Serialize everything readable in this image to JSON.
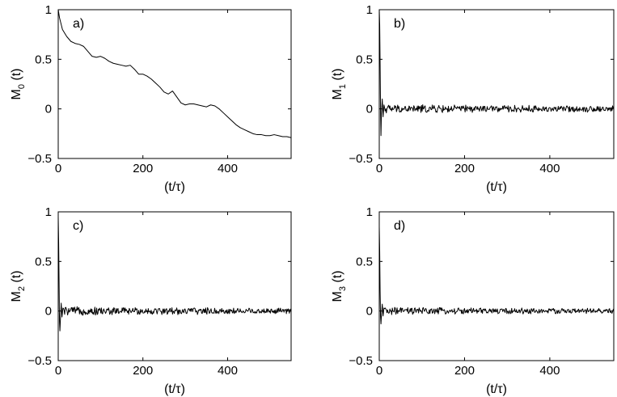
{
  "chart_data": [
    {
      "type": "line",
      "panel_label": "a)",
      "ylabel": {
        "main": "M",
        "sub": "0",
        "suffix": " (t)"
      },
      "xlabel": "(t/τ)",
      "xlim": [
        0,
        550
      ],
      "ylim": [
        -0.5,
        1
      ],
      "xticks": [
        "0",
        "200",
        "400"
      ],
      "yticks": [
        "−0.5",
        "0",
        "0.5",
        "1"
      ],
      "grid": false,
      "series": [
        {
          "x": [
            0,
            3,
            10,
            20,
            30,
            40,
            50,
            60,
            70,
            80,
            90,
            100,
            110,
            120,
            130,
            140,
            150,
            160,
            170,
            180,
            190,
            200,
            210,
            220,
            230,
            240,
            250,
            260,
            270,
            280,
            290,
            300,
            310,
            320,
            330,
            340,
            350,
            360,
            370,
            380,
            390,
            400,
            410,
            420,
            430,
            440,
            450,
            460,
            470,
            480,
            490,
            500,
            510,
            520,
            530,
            540,
            550
          ],
          "y": [
            1.0,
            0.92,
            0.8,
            0.73,
            0.68,
            0.66,
            0.65,
            0.63,
            0.58,
            0.53,
            0.52,
            0.53,
            0.51,
            0.48,
            0.46,
            0.45,
            0.44,
            0.43,
            0.44,
            0.4,
            0.35,
            0.35,
            0.33,
            0.3,
            0.26,
            0.22,
            0.17,
            0.15,
            0.18,
            0.12,
            0.06,
            0.04,
            0.05,
            0.05,
            0.04,
            0.03,
            0.02,
            0.04,
            0.03,
            0.0,
            -0.04,
            -0.08,
            -0.12,
            -0.16,
            -0.19,
            -0.21,
            -0.23,
            -0.25,
            -0.26,
            -0.26,
            -0.27,
            -0.27,
            -0.26,
            -0.27,
            -0.28,
            -0.28,
            -0.29
          ]
        }
      ]
    },
    {
      "type": "line",
      "panel_label": "b)",
      "ylabel": {
        "main": "M",
        "sub": "1",
        "suffix": " (t)"
      },
      "xlabel": "(t/τ)",
      "xlim": [
        0,
        550
      ],
      "ylim": [
        -0.5,
        1
      ],
      "xticks": [
        "0",
        "200",
        "400"
      ],
      "yticks": [
        "−0.5",
        "0",
        "0.5",
        "1"
      ],
      "grid": false,
      "series": [
        {
          "x": [
            0,
            1,
            2,
            3,
            4,
            5,
            7,
            9,
            11,
            550
          ],
          "y": [
            1.0,
            0.85,
            0.45,
            0.0,
            -0.27,
            -0.05,
            0.1,
            -0.08,
            0.04,
            0.0
          ],
          "noise_amplitude": 0.04
        }
      ]
    },
    {
      "type": "line",
      "panel_label": "c)",
      "ylabel": {
        "main": "M",
        "sub": "2",
        "suffix": " (t)"
      },
      "xlabel": "(t/τ)",
      "xlim": [
        0,
        550
      ],
      "ylim": [
        -0.5,
        1
      ],
      "xticks": [
        "0",
        "200",
        "400"
      ],
      "yticks": [
        "−0.5",
        "0",
        "0.5",
        "1"
      ],
      "grid": false,
      "series": [
        {
          "x": [
            0,
            1,
            2,
            3,
            4,
            5,
            7,
            9,
            11,
            550
          ],
          "y": [
            0.95,
            0.7,
            0.3,
            -0.1,
            -0.2,
            -0.1,
            0.08,
            -0.06,
            0.03,
            0.0
          ],
          "noise_amplitude": 0.04
        }
      ]
    },
    {
      "type": "line",
      "panel_label": "d)",
      "ylabel": {
        "main": "M",
        "sub": "3",
        "suffix": " (t)"
      },
      "xlabel": "(t/τ)",
      "xlim": [
        0,
        550
      ],
      "ylim": [
        -0.5,
        1
      ],
      "xticks": [
        "0",
        "200",
        "400"
      ],
      "yticks": [
        "−0.5",
        "0",
        "0.5",
        "1"
      ],
      "grid": false,
      "series": [
        {
          "x": [
            0,
            1,
            2,
            3,
            4,
            5,
            7,
            9,
            11,
            550
          ],
          "y": [
            0.85,
            0.6,
            0.2,
            -0.05,
            -0.13,
            -0.05,
            0.07,
            -0.05,
            0.03,
            0.0
          ],
          "noise_amplitude": 0.035
        }
      ]
    }
  ]
}
